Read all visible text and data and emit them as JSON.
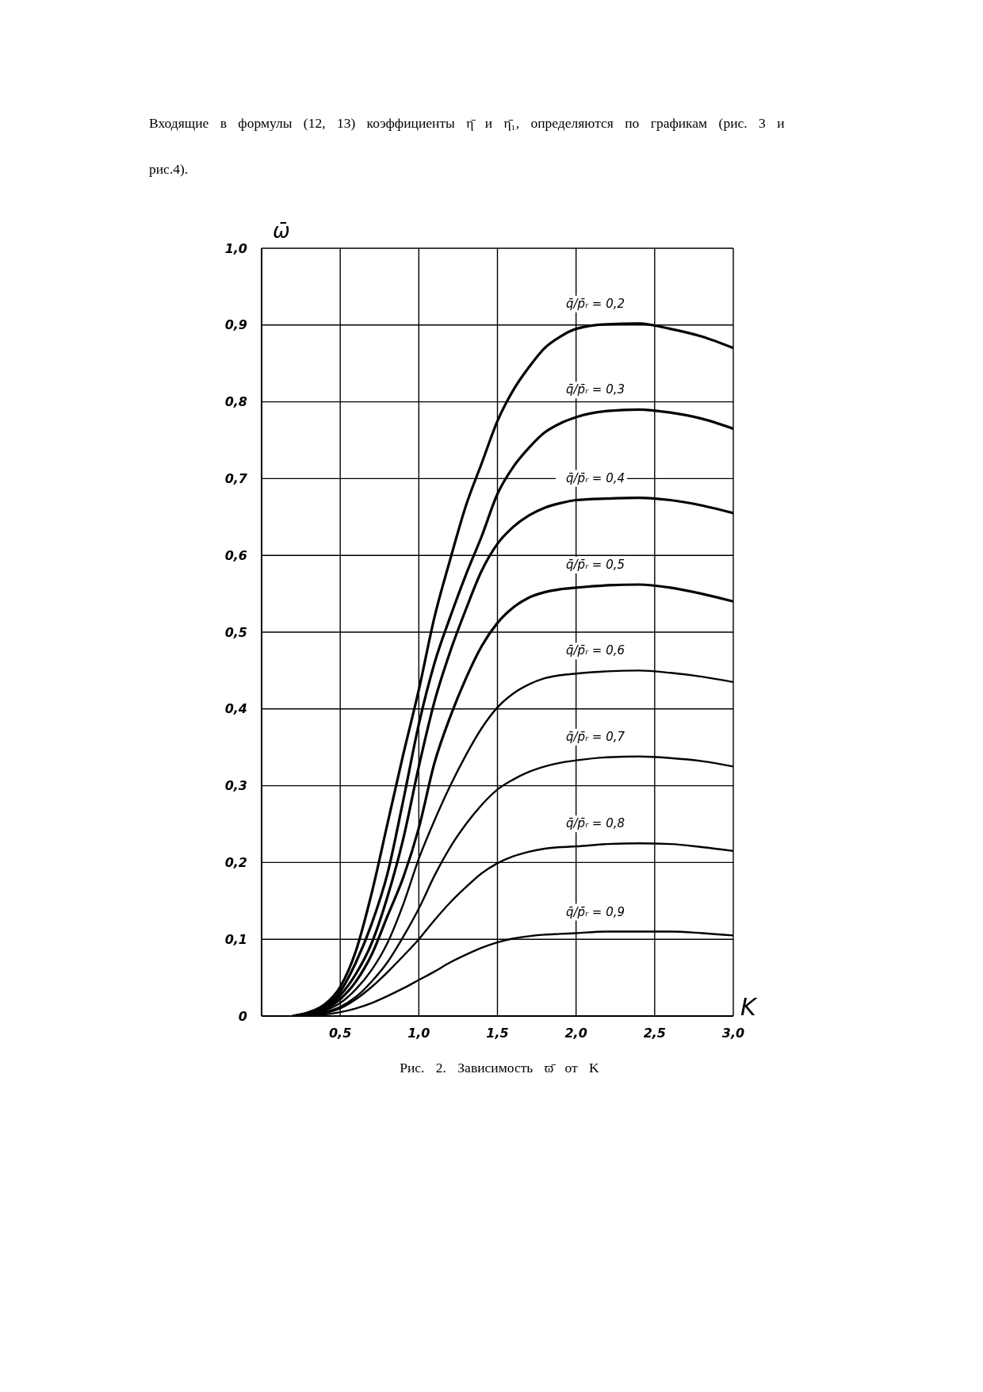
{
  "chart_data": {
    "type": "line",
    "annotations": [
      "Входящие в формулы (12, 13) коэффициенты η̄ и η̄₁, определяются по графикам (рис. 3 и рис.4).",
      "Рис. 2. Зависимость ϖ̄ от K"
    ],
    "xlabel": "K",
    "ylabel": "ω̄",
    "x": [
      0.2,
      0.3,
      0.4,
      0.5,
      0.6,
      0.7,
      0.8,
      0.9,
      1.0,
      1.1,
      1.2,
      1.3,
      1.4,
      1.5,
      1.6,
      1.7,
      1.8,
      1.9,
      2.0,
      2.2,
      2.4,
      2.6,
      2.8,
      3.0
    ],
    "series": [
      {
        "name": "q̄/p̄ᵣ = 0,2",
        "color": "#000000",
        "values": [
          0,
          0.005,
          0.015,
          0.038,
          0.085,
          0.16,
          0.25,
          0.34,
          0.425,
          0.52,
          0.595,
          0.665,
          0.72,
          0.775,
          0.815,
          0.845,
          0.87,
          0.885,
          0.895,
          0.901,
          0.902,
          0.895,
          0.885,
          0.87
        ]
      },
      {
        "name": "q̄/p̄ᵣ = 0,3",
        "color": "#000000",
        "values": [
          0,
          0.004,
          0.012,
          0.032,
          0.07,
          0.12,
          0.185,
          0.28,
          0.38,
          0.46,
          0.52,
          0.575,
          0.625,
          0.68,
          0.715,
          0.74,
          0.76,
          0.772,
          0.78,
          0.788,
          0.79,
          0.786,
          0.778,
          0.765
        ]
      },
      {
        "name": "q̄/p̄ᵣ = 0,4",
        "color": "#000000",
        "values": [
          0,
          0.004,
          0.01,
          0.027,
          0.055,
          0.095,
          0.155,
          0.23,
          0.325,
          0.41,
          0.475,
          0.53,
          0.58,
          0.615,
          0.637,
          0.652,
          0.662,
          0.668,
          0.672,
          0.674,
          0.675,
          0.672,
          0.665,
          0.655
        ]
      },
      {
        "name": "q̄/p̄ᵣ = 0,5",
        "color": "#000000",
        "values": [
          0,
          0.003,
          0.009,
          0.022,
          0.045,
          0.08,
          0.13,
          0.18,
          0.245,
          0.33,
          0.39,
          0.44,
          0.482,
          0.512,
          0.532,
          0.545,
          0.552,
          0.556,
          0.558,
          0.561,
          0.562,
          0.558,
          0.55,
          0.54
        ]
      },
      {
        "name": "q̄/p̄ᵣ = 0,6",
        "color": "#000000",
        "values": [
          0,
          0.002,
          0.007,
          0.017,
          0.035,
          0.06,
          0.095,
          0.145,
          0.205,
          0.255,
          0.3,
          0.34,
          0.375,
          0.402,
          0.42,
          0.432,
          0.44,
          0.444,
          0.446,
          0.449,
          0.45,
          0.447,
          0.442,
          0.435
        ]
      },
      {
        "name": "q̄/p̄ᵣ = 0,7",
        "color": "#000000",
        "values": [
          0,
          0.002,
          0.005,
          0.012,
          0.025,
          0.045,
          0.07,
          0.103,
          0.14,
          0.183,
          0.22,
          0.25,
          0.275,
          0.295,
          0.308,
          0.318,
          0.325,
          0.33,
          0.333,
          0.337,
          0.338,
          0.336,
          0.332,
          0.325
        ]
      },
      {
        "name": "q̄/p̄ᵣ = 0,8",
        "color": "#000000",
        "values": [
          0,
          0.001,
          0.004,
          0.01,
          0.022,
          0.038,
          0.057,
          0.078,
          0.1,
          0.125,
          0.148,
          0.168,
          0.186,
          0.199,
          0.208,
          0.214,
          0.218,
          0.22,
          0.221,
          0.224,
          0.225,
          0.224,
          0.22,
          0.215
        ]
      },
      {
        "name": "q̄/p̄ᵣ = 0,9",
        "color": "#000000",
        "values": [
          0,
          0.001,
          0.002,
          0.005,
          0.01,
          0.017,
          0.026,
          0.036,
          0.047,
          0.058,
          0.07,
          0.08,
          0.089,
          0.096,
          0.101,
          0.104,
          0.106,
          0.107,
          0.108,
          0.11,
          0.11,
          0.11,
          0.108,
          0.105
        ]
      }
    ],
    "xlim": [
      0,
      3
    ],
    "xticks": [
      {
        "value": 0,
        "label": null
      },
      {
        "value": 0.5,
        "label": "0,5"
      },
      {
        "value": 1,
        "label": "1,0"
      },
      {
        "value": 1.5,
        "label": "1,5"
      },
      {
        "value": 2,
        "label": "2,0"
      },
      {
        "value": 2.5,
        "label": "2,5"
      },
      {
        "value": 3,
        "label": "3,0"
      }
    ],
    "ylim": [
      0,
      1
    ],
    "yticks": [
      0,
      {
        "value": 0.1,
        "label": "0,1"
      },
      {
        "value": 0.2,
        "label": "0,2"
      },
      {
        "value": 0.3,
        "label": "0,3"
      },
      {
        "value": 0.4,
        "label": "0,4"
      },
      {
        "value": 0.5,
        "label": "0,5"
      },
      {
        "value": 0.6,
        "label": "0,6"
      },
      {
        "value": 0.7,
        "label": "0,7"
      },
      {
        "value": 0.8,
        "label": "0,8"
      },
      {
        "value": 0.9,
        "label": "0,9"
      },
      {
        "value": 1,
        "label": "1,0"
      }
    ],
    "grid": true
  }
}
